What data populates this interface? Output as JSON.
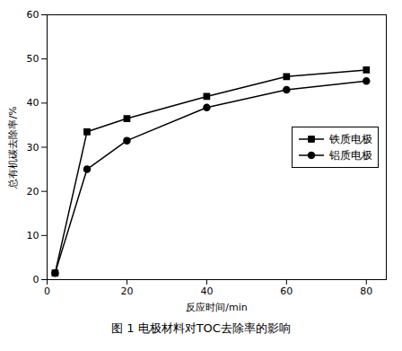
{
  "chart_data": {
    "type": "line",
    "caption": "图 1 电极材料对TOC去除率的影响",
    "xlabel": "反应时间/min",
    "ylabel": "总有机碳去除率/%",
    "x": [
      2,
      10,
      20,
      40,
      60,
      80
    ],
    "series": [
      {
        "name": "铁质电极",
        "color": "#000000",
        "marker": "square",
        "values": [
          1.5,
          33.5,
          36.5,
          41.5,
          46.0,
          47.5
        ]
      },
      {
        "name": "铝质电极",
        "color": "#000000",
        "marker": "circle",
        "values": [
          1.5,
          25.0,
          31.5,
          39.0,
          43.0,
          45.0
        ]
      }
    ],
    "xlim": [
      0,
      85
    ],
    "ylim": [
      0,
      60
    ],
    "xticks": [
      0,
      20,
      40,
      60,
      80
    ],
    "yticks": [
      0,
      10,
      20,
      30,
      40,
      50,
      60
    ],
    "grid": false,
    "legend": "center right"
  }
}
